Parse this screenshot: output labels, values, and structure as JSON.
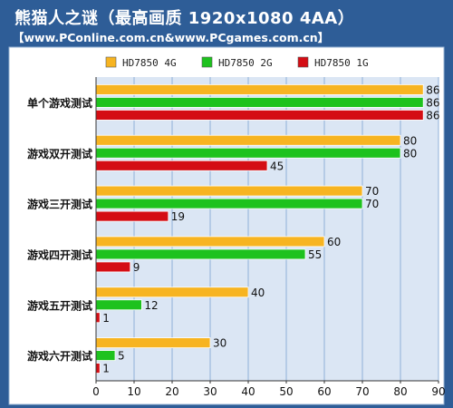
{
  "header": {
    "title": "熊猫人之谜（最高画质 1920x1080 4AA）",
    "source": "【www.PConline.com.cn&www.PCgames.com.cn】"
  },
  "colors": {
    "page_bg": "#2e5d97",
    "plot_bg": "#dbe6f4",
    "grid": "#8fb0d8",
    "axis": "#333333"
  },
  "chart_data": {
    "type": "bar",
    "orientation": "horizontal",
    "categories": [
      "单个游戏测试",
      "游戏双开测试",
      "游戏三开测试",
      "游戏四开测试",
      "游戏五开测试",
      "游戏六开测试"
    ],
    "series": [
      {
        "name": "HD7850 4G",
        "color": "#f7b421",
        "values": [
          86,
          80,
          70,
          60,
          40,
          30
        ]
      },
      {
        "name": "HD7850 2G",
        "color": "#1ec21e",
        "values": [
          86,
          80,
          70,
          55,
          12,
          5
        ]
      },
      {
        "name": "HD7850 1G",
        "color": "#d40d14",
        "values": [
          86,
          45,
          19,
          9,
          1,
          1
        ]
      }
    ],
    "xlim": [
      0,
      90
    ],
    "xticks": [
      0,
      10,
      20,
      30,
      40,
      50,
      60,
      70,
      80,
      90
    ],
    "grid": true,
    "legend": "top",
    "data_labels": true
  }
}
